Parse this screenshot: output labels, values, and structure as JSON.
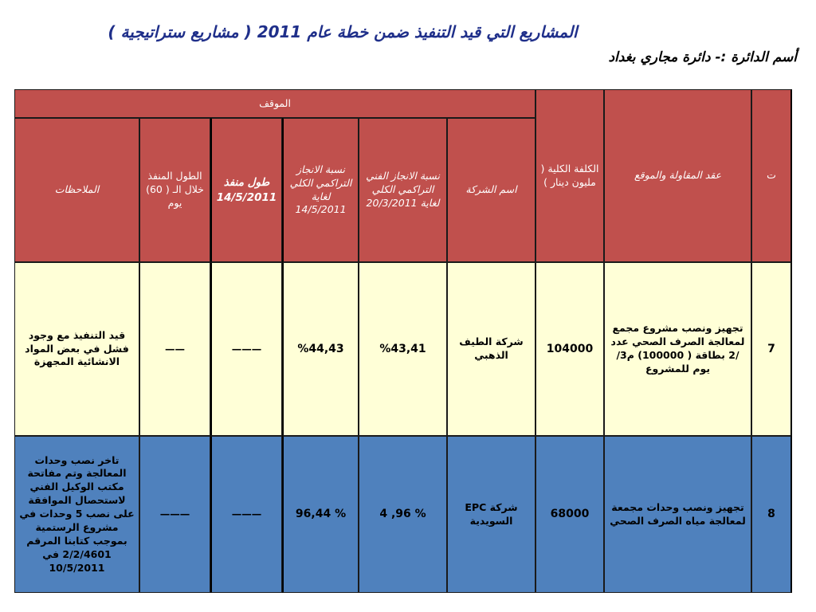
{
  "title": "المشاريع  التي قيد التنفيذ ضمن خطة عام 2011 ( مشاريع ستراتيجية  )",
  "department": "أسم الدائرة :- دائرة مجاري بغداد",
  "headers": {
    "seq": "ت",
    "contract": "عقد المقاولة والموقع",
    "cost": "الكلفة الكلية ( مليون دينار )",
    "status_group": "الموقف",
    "company": "اسم الشركة",
    "tech_progress": "نسبة الانجاز الفني التراكمي الكلي لغاية 20/3/2011",
    "total_progress": "نسبة الانجاز التراكمي الكلي لغاية 14/5/2011",
    "executed_length": "طول منفذ 14/5/2011",
    "executed_60": "الطول المنفذ خلال الـ ( 60) يوم",
    "notes": "الملاحظات"
  },
  "rows": [
    {
      "seq": "7",
      "contract": "تجهيز ونصب مشروع مجمع لمعالجة الصرف الصحي عدد /2 بطاقة ( 100000) م3/ يوم للمشروع",
      "cost": "104000",
      "company": "شركة الطيف الذهبي",
      "tech_progress": "%43,41",
      "total_progress": "%44,43",
      "executed_length": "———",
      "executed_60": "——",
      "notes": "قيد التنفيذ مع وجود فشل في بعض المواد الانشائية المجهزة"
    },
    {
      "seq": "8",
      "contract": "تجهيز ونصب  وحدات مجمعة لمعالجة مياه الصرف الصحي",
      "cost": "68000",
      "company": "شركة  EPC السويدية",
      "tech_progress": "% 96, 4",
      "total_progress": "% 96,44",
      "executed_length": "———",
      "executed_60": "———",
      "notes": "تاخر نصب وحدات المعالجة  وتم مفاتحة مكتب الوكيل الفني لاستحصال الموافقة على نصب 5 وحدات في مشروع الرستمية بموجب كتابنا المرقم 2/2/4601 في 10/5/2011"
    }
  ],
  "colors": {
    "header_bg": "#c0504d",
    "row1_bg": "#ffffd7",
    "row2_bg": "#4f81bd",
    "title_color": "#1f2f8a"
  }
}
